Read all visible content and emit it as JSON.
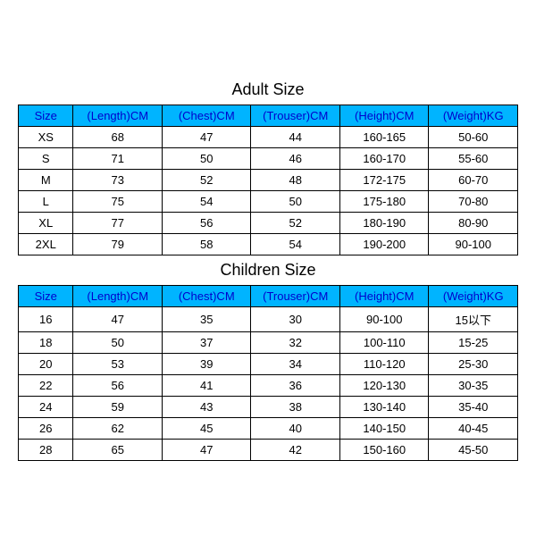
{
  "colors": {
    "header_bg": "#00b4ff",
    "header_text": "#0000cc",
    "border": "#000000",
    "cell_text": "#000000",
    "background": "#ffffff"
  },
  "typography": {
    "title_fontsize": 18,
    "cell_fontsize": 13,
    "font_family": "Arial"
  },
  "adult": {
    "title": "Adult Size",
    "columns": [
      "Size",
      "(Length)CM",
      "(Chest)CM",
      "(Trouser)CM",
      "(Height)CM",
      "(Weight)KG"
    ],
    "rows": [
      [
        "XS",
        "68",
        "47",
        "44",
        "160-165",
        "50-60"
      ],
      [
        "S",
        "71",
        "50",
        "46",
        "160-170",
        "55-60"
      ],
      [
        "M",
        "73",
        "52",
        "48",
        "172-175",
        "60-70"
      ],
      [
        "L",
        "75",
        "54",
        "50",
        "175-180",
        "70-80"
      ],
      [
        "XL",
        "77",
        "56",
        "52",
        "180-190",
        "80-90"
      ],
      [
        "2XL",
        "79",
        "58",
        "54",
        "190-200",
        "90-100"
      ]
    ]
  },
  "children": {
    "title": "Children Size",
    "columns": [
      "Size",
      "(Length)CM",
      "(Chest)CM",
      "(Trouser)CM",
      "(Height)CM",
      "(Weight)KG"
    ],
    "rows": [
      [
        "16",
        "47",
        "35",
        "30",
        "90-100",
        "15以下"
      ],
      [
        "18",
        "50",
        "37",
        "32",
        "100-110",
        "15-25"
      ],
      [
        "20",
        "53",
        "39",
        "34",
        "110-120",
        "25-30"
      ],
      [
        "22",
        "56",
        "41",
        "36",
        "120-130",
        "30-35"
      ],
      [
        "24",
        "59",
        "43",
        "38",
        "130-140",
        "35-40"
      ],
      [
        "26",
        "62",
        "45",
        "40",
        "140-150",
        "40-45"
      ],
      [
        "28",
        "65",
        "47",
        "42",
        "150-160",
        "45-50"
      ]
    ]
  }
}
